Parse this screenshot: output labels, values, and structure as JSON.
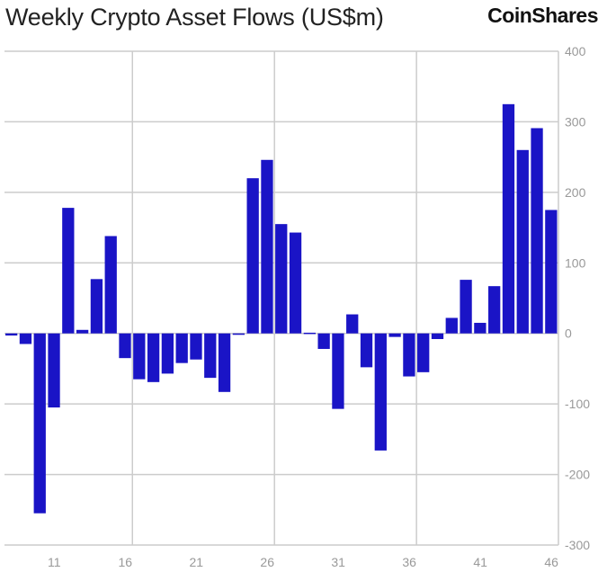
{
  "header": {
    "title": "Weekly Crypto Asset Flows (US$m)",
    "logo": "CoinShares"
  },
  "chart_data": {
    "type": "bar",
    "title": "Weekly Crypto Asset Flows (US$m)",
    "xlabel": "",
    "ylabel": "",
    "x": [
      8,
      9,
      10,
      11,
      12,
      13,
      14,
      15,
      16,
      17,
      18,
      19,
      20,
      21,
      22,
      23,
      24,
      25,
      26,
      27,
      28,
      29,
      30,
      31,
      32,
      33,
      34,
      35,
      36,
      37,
      38,
      39,
      40,
      41,
      42,
      43,
      44,
      45,
      46
    ],
    "values": [
      -3,
      -15,
      -255,
      -105,
      178,
      5,
      77,
      138,
      -35,
      -65,
      -69,
      -57,
      -42,
      -37,
      -63,
      -83,
      -2,
      220,
      246,
      155,
      143,
      1,
      -22,
      -107,
      27,
      -48,
      -166,
      -5,
      -61,
      -55,
      -8,
      22,
      76,
      15,
      67,
      325,
      260,
      291,
      175
    ],
    "xticks": [
      11,
      16,
      21,
      26,
      31,
      36,
      41,
      46
    ],
    "yticks": [
      400,
      300,
      200,
      100,
      0,
      -100,
      -200,
      -300
    ],
    "ylim": [
      -300,
      400
    ],
    "grid": true,
    "y_axis_side": "right",
    "bar_color": "#1a14c6"
  }
}
